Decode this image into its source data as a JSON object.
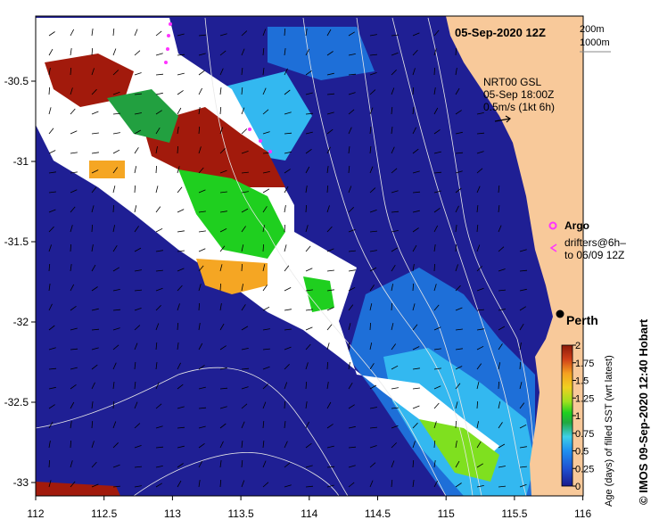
{
  "title": "05-Sep-2020 12Z",
  "depth_legend": {
    "line1": "200m",
    "line2": "1000m"
  },
  "current_info": {
    "line1": "NRT00 GSL",
    "line2": "05-Sep 18:00Z",
    "line3": "0.5m/s (1kt 6h)"
  },
  "argo_label": "Argo",
  "drifters_label": {
    "line1": "drifters@6h–",
    "line2": "to 06/09 12Z"
  },
  "city_label": "Perth",
  "colorbar": {
    "title": "Age (days) of filled SST (wrt latest)",
    "ticks": [
      "0",
      "0.25",
      "0.5",
      "0.75",
      "1",
      "1.25",
      "1.5",
      "1.75",
      "2"
    ],
    "colors": [
      "#1a1a8c",
      "#1f3fbf",
      "#1e73e0",
      "#22a3f0",
      "#3ecde8",
      "#27b04a",
      "#1fcf1f",
      "#7fe01f",
      "#c8e81a",
      "#f0d020",
      "#f5a623",
      "#e06020",
      "#c02010",
      "#8b1a0a"
    ]
  },
  "x_ticks": [
    "112",
    "112.5",
    "113",
    "113.5",
    "114",
    "114.5",
    "115",
    "115.5",
    "116"
  ],
  "y_ticks": [
    "-30.5",
    "-31",
    "-31.5",
    "-32",
    "-32.5",
    "-33"
  ],
  "credit": "© IMOS 09-Sep-2020 12:40 Hobart",
  "colors": {
    "ocean": "#1f1f94",
    "land": "#f8c99a",
    "marker": "#ff33ff"
  }
}
